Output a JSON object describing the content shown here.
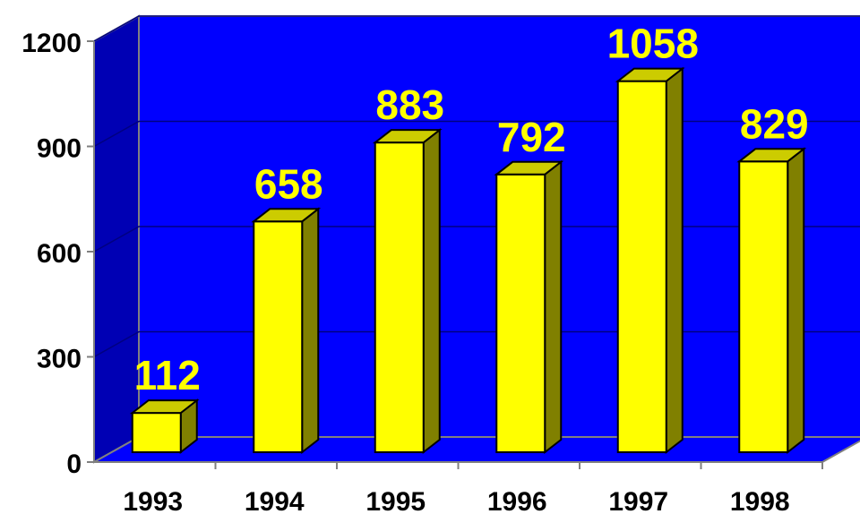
{
  "chart_data": {
    "type": "bar",
    "categories": [
      "1993",
      "1994",
      "1995",
      "1996",
      "1997",
      "1998"
    ],
    "values": [
      112,
      658,
      883,
      792,
      1058,
      829
    ],
    "data_labels": [
      "112",
      "658",
      "883",
      "792",
      "1058",
      "829"
    ],
    "y_ticks": [
      "0",
      "300",
      "600",
      "900",
      "1200"
    ],
    "ylim": [
      0,
      1200
    ],
    "grid": true,
    "legend": "none",
    "title": "",
    "xlabel": "",
    "ylabel": "",
    "colors": {
      "plot_back": "#0000ff",
      "floor": "#0000ff",
      "side_wall": "#0000b4",
      "gridline": "#000080",
      "bar_front": "#ffff00",
      "bar_top": "#cccc00",
      "bar_side": "#808000",
      "data_label": "#ffff00",
      "axis_text": "#000000"
    }
  }
}
